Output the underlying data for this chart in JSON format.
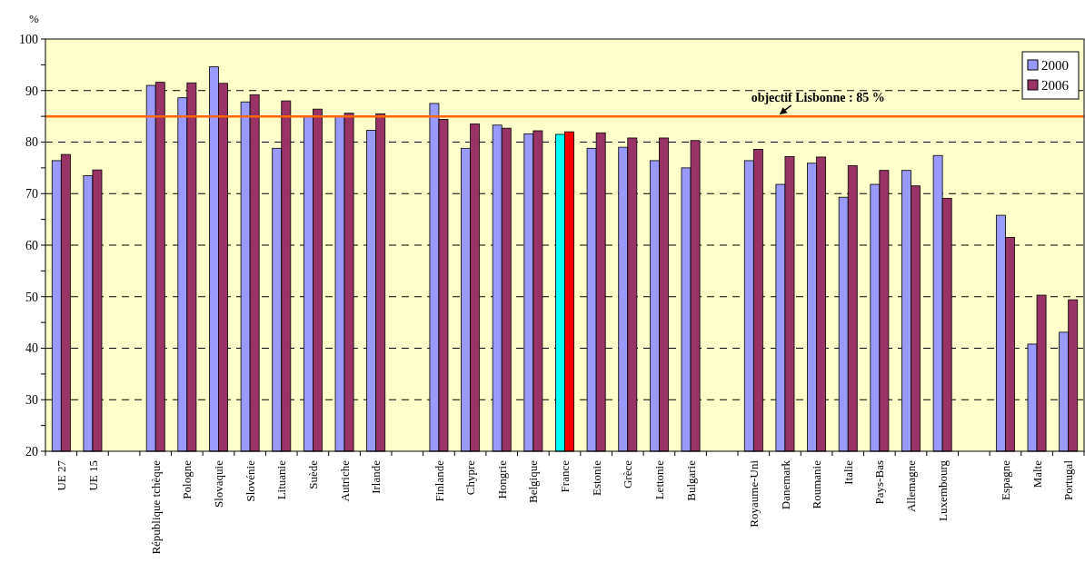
{
  "chart_data": {
    "type": "bar",
    "ylabel": "%",
    "categories": [
      "UE 27",
      "UE 15",
      null,
      "République tchèque",
      "Pologne",
      "Slovaquie",
      "Slovénie",
      "Lituanie",
      "Suède",
      "Autriche",
      "Irlande",
      null,
      "Finlande",
      "Chypre",
      "Hongrie",
      "Belgique",
      "France",
      "Estonie",
      "Grèce",
      "Lettonie",
      "Bulgarie",
      null,
      "Royaume-Uni",
      "Danemark",
      "Roumanie",
      "Italie",
      "Pays-Bas",
      "Allemagne",
      "Luxembourg",
      null,
      "Espagne",
      "Malte",
      "Portugal"
    ],
    "series": [
      {
        "name": "2000",
        "color": "#9999ff",
        "colors": [
          "#9999ff",
          "#9999ff",
          null,
          "#9999ff",
          "#9999ff",
          "#9999ff",
          "#9999ff",
          "#9999ff",
          "#9999ff",
          "#9999ff",
          "#9999ff",
          null,
          "#9999ff",
          "#9999ff",
          "#9999ff",
          "#9999ff",
          "#00ffff",
          "#9999ff",
          "#9999ff",
          "#9999ff",
          "#9999ff",
          null,
          "#9999ff",
          "#9999ff",
          "#9999ff",
          "#9999ff",
          "#9999ff",
          "#9999ff",
          "#9999ff",
          null,
          "#9999ff",
          "#9999ff",
          "#9999ff"
        ],
        "values": [
          76.4,
          73.5,
          null,
          91.0,
          88.6,
          94.6,
          87.8,
          78.8,
          85.0,
          85.0,
          82.3,
          null,
          87.5,
          78.8,
          83.3,
          81.6,
          81.5,
          78.8,
          79.0,
          76.4,
          75.0,
          null,
          76.4,
          71.8,
          75.9,
          69.3,
          71.8,
          74.5,
          77.4,
          null,
          65.8,
          40.8,
          43.1
        ]
      },
      {
        "name": "2006",
        "color": "#993366",
        "colors": [
          "#993366",
          "#993366",
          null,
          "#993366",
          "#993366",
          "#993366",
          "#993366",
          "#993366",
          "#993366",
          "#993366",
          "#993366",
          null,
          "#993366",
          "#993366",
          "#993366",
          "#993366",
          "#ff0000",
          "#993366",
          "#993366",
          "#993366",
          "#993366",
          null,
          "#993366",
          "#993366",
          "#993366",
          "#993366",
          "#993366",
          "#993366",
          "#993366",
          null,
          "#993366",
          "#993366",
          "#993366"
        ],
        "values": [
          77.6,
          74.6,
          null,
          91.6,
          91.5,
          91.4,
          89.2,
          88.0,
          86.4,
          85.6,
          85.5,
          null,
          84.4,
          83.5,
          82.7,
          82.2,
          82.0,
          81.8,
          80.8,
          80.8,
          80.3,
          null,
          78.6,
          77.2,
          77.1,
          75.4,
          74.5,
          71.5,
          69.1,
          null,
          61.5,
          50.3,
          49.4
        ]
      }
    ],
    "ylim": [
      20,
      100
    ],
    "yticks": [
      20,
      {
        "value": 25,
        "label": null
      },
      30,
      {
        "value": 35,
        "label": null
      },
      40,
      {
        "value": 45,
        "label": null
      },
      50,
      {
        "value": 55,
        "label": null
      },
      60,
      {
        "value": 65,
        "label": null
      },
      70,
      {
        "value": 75,
        "label": null
      },
      80,
      {
        "value": 85,
        "label": null
      },
      90,
      {
        "value": 95,
        "label": null
      },
      100
    ],
    "grid": "y",
    "legend": "top right",
    "ref_lines": [
      {
        "axis": "y",
        "value": 85,
        "label": "objectif Lisbonne : 85 %",
        "color": "#ff6600",
        "line_style": "solid"
      }
    ]
  }
}
